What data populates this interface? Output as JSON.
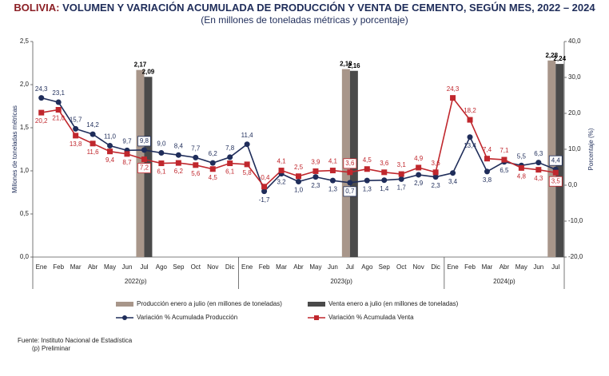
{
  "chart_data": {
    "type": "combo",
    "title_lead": "BOLIVIA:",
    "title": "VOLUMEN Y VARIACIÓN ACUMULADA DE PRODUCCIÓN Y VENTA DE CEMENTO, SEGÚN MES, 2022 – 2024",
    "subtitle": "(En millones de toneladas métricas y porcentaje)",
    "y_label": "Millones de toneladas métricas",
    "y2_label": "Porcentaje (%)",
    "categories": [
      "Ene",
      "Feb",
      "Mar",
      "Abr",
      "May",
      "Jun",
      "Jul",
      "Ago",
      "Sep",
      "Oct",
      "Nov",
      "Dic",
      "Ene",
      "Feb",
      "Mar",
      "Abr",
      "May",
      "Jun",
      "Jul",
      "Ago",
      "Sep",
      "Oct",
      "Nov",
      "Dic",
      "Ene",
      "Feb",
      "Mar",
      "Abr",
      "May",
      "Jun",
      "Jul"
    ],
    "groups": [
      {
        "label": "2022(p)",
        "size": 12
      },
      {
        "label": "2023(p)",
        "size": 12
      },
      {
        "label": "2024(p)",
        "size": 7
      }
    ],
    "ylim": [
      0,
      2.5
    ],
    "yticks": [
      {
        "value": 0,
        "label": "0,0"
      },
      {
        "value": 0.5,
        "label": "0,5"
      },
      {
        "value": 1,
        "label": "1,0"
      },
      {
        "value": 1.5,
        "label": "1,5"
      },
      {
        "value": 2,
        "label": "2,0"
      },
      {
        "value": 2.5,
        "label": "2,5"
      }
    ],
    "y2lim": [
      -20,
      40
    ],
    "y2ticks": [
      {
        "value": -20,
        "label": "-20,0"
      },
      {
        "value": -10,
        "label": "-10,0"
      },
      {
        "value": 0,
        "label": "0,0"
      },
      {
        "value": 10,
        "label": "10,0"
      },
      {
        "value": 20,
        "label": "20,0"
      },
      {
        "value": 30,
        "label": "30,0"
      },
      {
        "value": 40,
        "label": "40,0"
      }
    ],
    "series": [
      {
        "name": "Producción enero a julio (en millones de toneladas)",
        "type": "bar",
        "color": "#a8968a",
        "values": [
          null,
          null,
          null,
          null,
          null,
          null,
          2.17,
          null,
          null,
          null,
          null,
          null,
          null,
          null,
          null,
          null,
          null,
          null,
          2.18,
          null,
          null,
          null,
          null,
          null,
          null,
          null,
          null,
          null,
          null,
          null,
          2.28
        ],
        "value_labels": [
          null,
          null,
          null,
          null,
          null,
          null,
          "2,17",
          null,
          null,
          null,
          null,
          null,
          null,
          null,
          null,
          null,
          null,
          null,
          "2,18",
          null,
          null,
          null,
          null,
          null,
          null,
          null,
          null,
          null,
          null,
          null,
          "2,28"
        ]
      },
      {
        "name": "Venta enero a julio (en millones de toneladas)",
        "type": "bar",
        "color": "#4a4a4a",
        "values": [
          null,
          null,
          null,
          null,
          null,
          null,
          2.09,
          null,
          null,
          null,
          null,
          null,
          null,
          null,
          null,
          null,
          null,
          null,
          2.16,
          null,
          null,
          null,
          null,
          null,
          null,
          null,
          null,
          null,
          null,
          null,
          2.24
        ],
        "value_labels": [
          null,
          null,
          null,
          null,
          null,
          null,
          "2,09",
          null,
          null,
          null,
          null,
          null,
          null,
          null,
          null,
          null,
          null,
          null,
          "2,16",
          null,
          null,
          null,
          null,
          null,
          null,
          null,
          null,
          null,
          null,
          null,
          "2,24"
        ]
      },
      {
        "name": "Variación % Acumulada Producción",
        "type": "line",
        "axis": "y2",
        "color": "#1f2d5a",
        "marker": "circle",
        "values": [
          24.3,
          23.1,
          15.7,
          14.2,
          11.0,
          9.7,
          9.8,
          9.0,
          8.4,
          7.7,
          6.2,
          7.8,
          11.4,
          -1.7,
          3.2,
          1.0,
          2.3,
          1.3,
          0.7,
          1.3,
          1.4,
          1.7,
          2.9,
          2.3,
          3.4,
          13.4,
          3.8,
          6.5,
          5.5,
          6.3,
          4.4
        ],
        "value_labels": [
          "24,3",
          "23,1",
          "15,7",
          "14,2",
          "11,0",
          "9,7",
          "9,8",
          "9,0",
          "8,4",
          "7,7",
          "6,2",
          "7,8",
          "11,4",
          "-1,7",
          "3,2",
          "1,0",
          "2,3",
          "1,3",
          "0,7",
          "1,3",
          "1,4",
          "1,7",
          "2,9",
          "2,3",
          "3,4",
          "13,4",
          "3,8",
          "6,5",
          "5,5",
          "6,3",
          "4,4"
        ]
      },
      {
        "name": "Variación % Acumulada Venta",
        "type": "line",
        "axis": "y2",
        "color": "#c0272d",
        "marker": "square",
        "values": [
          20.2,
          21.0,
          13.8,
          11.6,
          9.4,
          8.7,
          7.2,
          6.1,
          6.2,
          5.6,
          4.5,
          6.1,
          5.8,
          -0.4,
          4.1,
          2.5,
          3.9,
          4.1,
          3.6,
          4.5,
          3.6,
          3.1,
          4.9,
          3.6,
          24.3,
          18.2,
          7.4,
          7.1,
          4.8,
          4.3,
          3.5
        ],
        "value_labels": [
          "20,2",
          "21,0",
          "13,8",
          "11,6",
          "9,4",
          "8,7",
          "7,2",
          "6,1",
          "6,2",
          "5,6",
          "4,5",
          "6,1",
          "5,8",
          "-0,4",
          "4,1",
          "2,5",
          "3,9",
          "4,1",
          "3,6",
          "4,5",
          "3,6",
          "3,1",
          "4,9",
          "3,6",
          "24,3",
          "18,2",
          "7,4",
          "7,1",
          "4,8",
          "4,3",
          "3,5"
        ]
      }
    ],
    "source": "Fuente: Instituto Nacional de Estadística",
    "note": "(p) Preliminar"
  }
}
